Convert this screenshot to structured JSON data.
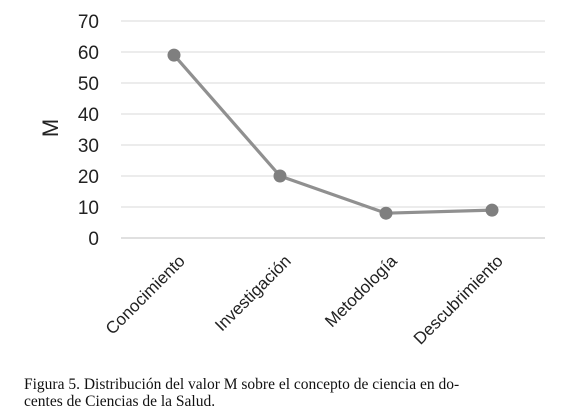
{
  "chart_data": {
    "type": "line",
    "categories": [
      "Conocimiento",
      "Investigación",
      "Metodología",
      "Descubrimiento"
    ],
    "series": [
      {
        "values": [
          59,
          20,
          8,
          9
        ]
      }
    ],
    "title": "",
    "xlabel": "",
    "ylabel": "M",
    "ylim": [
      0,
      70
    ],
    "yticks": [
      0,
      10,
      20,
      30,
      40,
      50,
      60,
      70
    ],
    "grid": "horizontal",
    "legend": "none",
    "colors": {
      "line": "#909090",
      "marker": "#7f7f7f",
      "grid": "#d9d9d9",
      "axis": "#c0c0c0"
    }
  },
  "caption": {
    "line1": "Figura 5. Distribución del valor M sobre el concepto de ciencia en do-",
    "line2": "centes de Ciencias de la Salud."
  }
}
